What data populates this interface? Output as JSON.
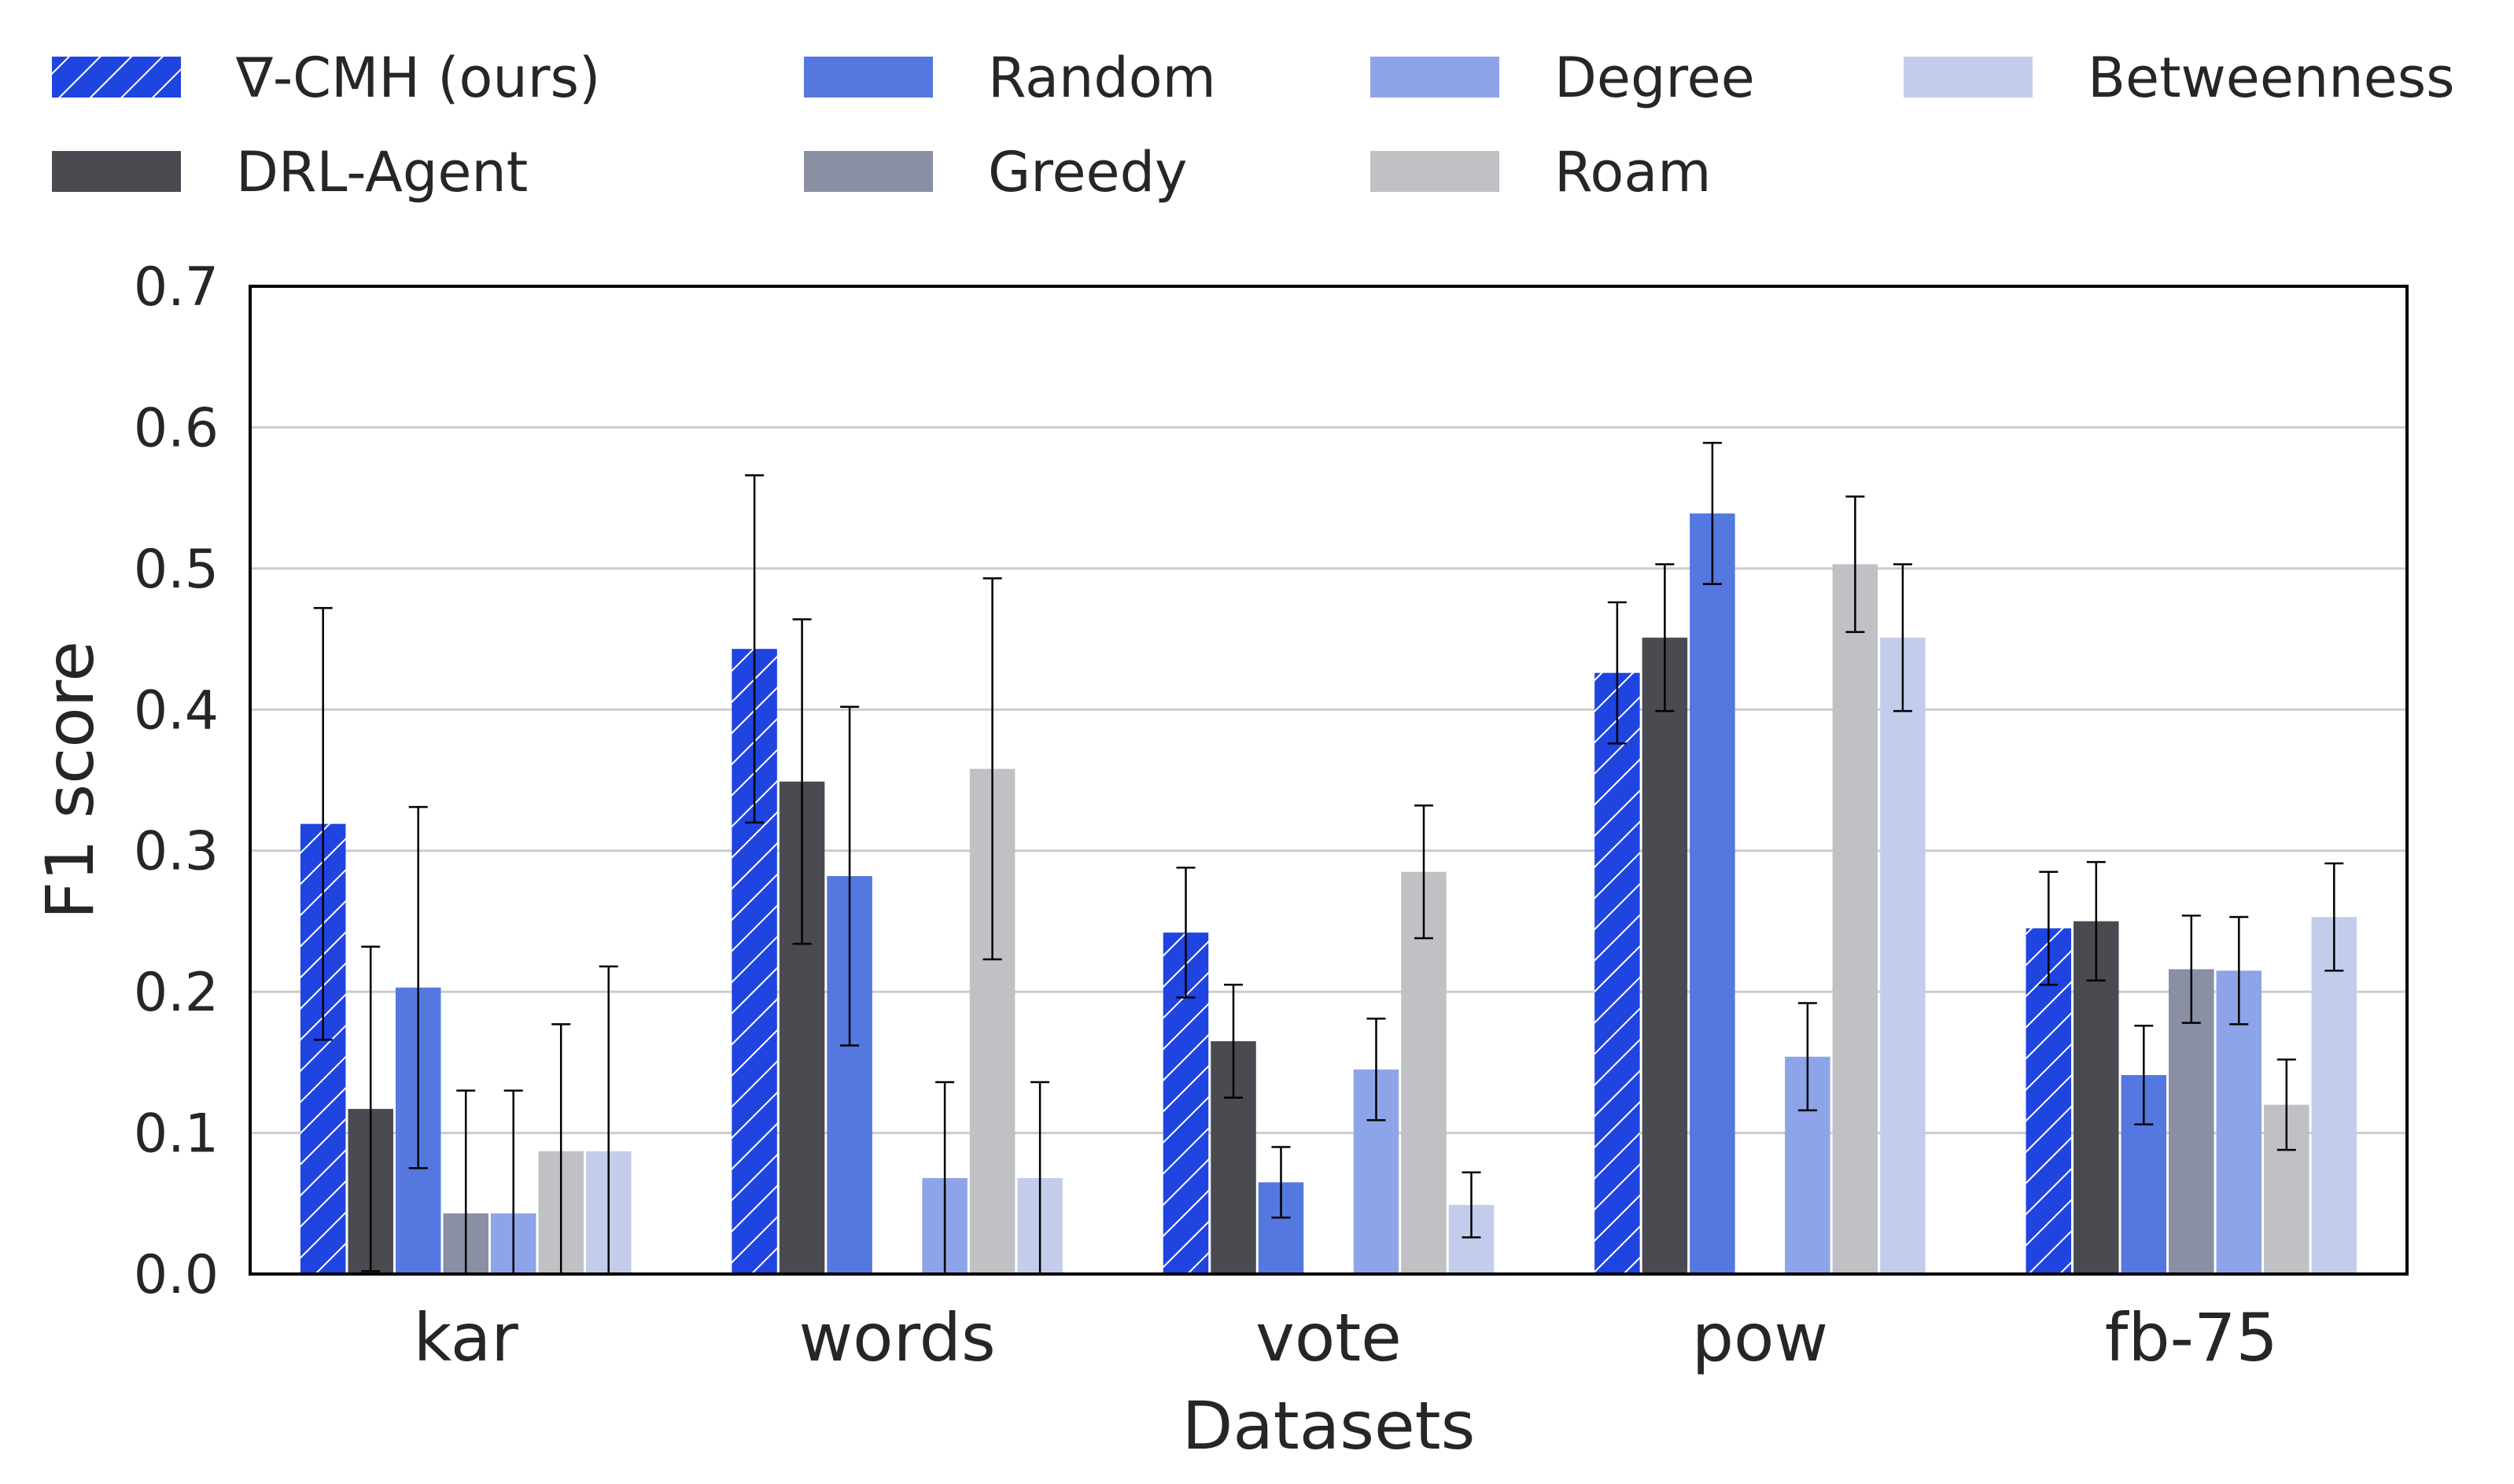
{
  "chart_data": {
    "type": "bar",
    "title": "",
    "xlabel": "Datasets",
    "ylabel": "F1 score",
    "ylim": [
      0,
      0.7
    ],
    "yticks": [
      "0.0",
      "0.1",
      "0.2",
      "0.3",
      "0.4",
      "0.5",
      "0.6",
      "0.7"
    ],
    "grid": "horizontal",
    "legend_position": "top",
    "categories": [
      "kar",
      "words",
      "vote",
      "pow",
      "fb-75"
    ],
    "series": [
      {
        "name": "∇-CMH (ours)",
        "color": "#1f44e0",
        "hatch": true,
        "values": [
          0.319,
          0.443,
          0.242,
          0.426,
          0.245
        ],
        "error": [
          0.153,
          0.123,
          0.046,
          0.05,
          0.04
        ]
      },
      {
        "name": "DRL-Agent",
        "color": "#4a4b50",
        "hatch": false,
        "values": [
          0.117,
          0.349,
          0.165,
          0.451,
          0.25
        ],
        "error": [
          0.115,
          0.115,
          0.04,
          0.052,
          0.042
        ]
      },
      {
        "name": "Random",
        "color": "#5478e0",
        "hatch": false,
        "values": [
          0.203,
          0.282,
          0.065,
          0.539,
          0.141
        ],
        "error": [
          0.128,
          0.12,
          0.025,
          0.05,
          0.035
        ]
      },
      {
        "name": "Greedy",
        "color": "#8a8fa3",
        "hatch": false,
        "values": [
          0.043,
          0.0,
          0.0,
          0.0,
          0.216
        ],
        "error": [
          0.087,
          0.0,
          0.0,
          0.0,
          0.038
        ]
      },
      {
        "name": "Degree",
        "color": "#8ea4e8",
        "hatch": false,
        "values": [
          0.043,
          0.068,
          0.145,
          0.154,
          0.215
        ],
        "error": [
          0.087,
          0.068,
          0.036,
          0.038,
          0.038
        ]
      },
      {
        "name": "Roam",
        "color": "#c0c1c4",
        "hatch": false,
        "values": [
          0.087,
          0.358,
          0.285,
          0.503,
          0.12
        ],
        "error": [
          0.09,
          0.135,
          0.047,
          0.048,
          0.032
        ]
      },
      {
        "name": "Betweenness",
        "color": "#c3cdeb",
        "hatch": false,
        "values": [
          0.087,
          0.068,
          0.049,
          0.451,
          0.253
        ],
        "error": [
          0.131,
          0.068,
          0.023,
          0.052,
          0.038
        ]
      }
    ]
  }
}
